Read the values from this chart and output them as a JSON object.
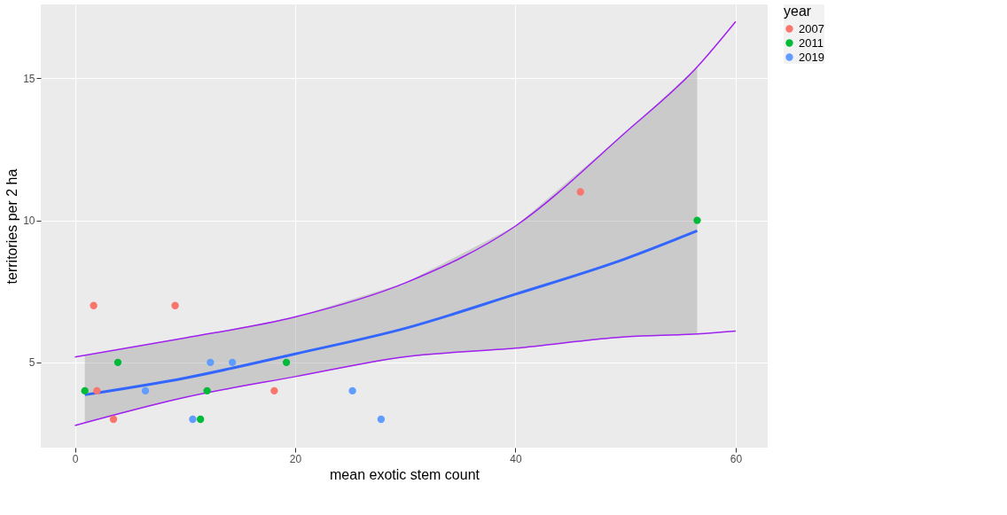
{
  "chart_data": {
    "type": "scatter",
    "xlabel": "mean exotic stem count",
    "ylabel": "territories per 2 ha",
    "legend_title": "year",
    "legend": "right",
    "grid": true,
    "marker": "circle",
    "xlim": [
      -3.1,
      62.9
    ],
    "xticks": [
      0,
      20,
      40,
      60
    ],
    "ylim": [
      2.0,
      17.6
    ],
    "yticks": [
      5,
      10,
      15
    ],
    "series": [
      {
        "name": "2007",
        "color": "#f8766d",
        "x": [
          1.7,
          9.1,
          2.0,
          3.5,
          18.1,
          45.9
        ],
        "values": [
          7,
          7,
          4,
          3,
          4,
          11
        ]
      },
      {
        "name": "2011",
        "color": "#00ba38",
        "x": [
          0.9,
          3.9,
          12.0,
          11.4,
          19.2,
          56.5
        ],
        "values": [
          4,
          5,
          4,
          3,
          5,
          10
        ]
      },
      {
        "name": "2019",
        "color": "#619cff",
        "x": [
          6.4,
          10.7,
          12.3,
          14.3,
          25.2,
          27.8
        ],
        "values": [
          4,
          3,
          5,
          5,
          4,
          3
        ]
      },
      {
        "type": "line",
        "color": "#3366ff",
        "x": [
          0.9,
          10,
          20,
          30,
          40,
          50,
          56.5
        ],
        "marker": "none",
        "line_style": "solid",
        "values": [
          3.86,
          4.45,
          5.3,
          6.2,
          7.4,
          8.65,
          9.63
        ],
        "lower": [
          2.86,
          3.77,
          4.5,
          5.2,
          5.5,
          5.9,
          6.0
        ],
        "upper": [
          5.24,
          5.86,
          6.6,
          7.8,
          9.8,
          13.1,
          15.4
        ]
      },
      {
        "type": "line",
        "color": "#a020f0",
        "x": [
          0,
          10,
          20,
          30,
          40,
          50,
          56.5,
          60
        ],
        "marker": "none",
        "line_style": "solid",
        "values": [
          5.19,
          5.86,
          6.6,
          7.8,
          9.8,
          13.1,
          15.4,
          17.0
        ]
      },
      {
        "type": "line",
        "color": "#a020f0",
        "x": [
          0,
          10,
          20,
          30,
          40,
          50,
          56.5,
          60
        ],
        "marker": "none",
        "line_style": "solid",
        "values": [
          2.78,
          3.77,
          4.5,
          5.2,
          5.5,
          5.9,
          6.0,
          6.1
        ]
      }
    ]
  }
}
